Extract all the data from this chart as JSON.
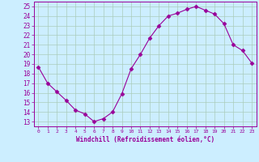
{
  "x": [
    0,
    1,
    2,
    3,
    4,
    5,
    6,
    7,
    8,
    9,
    10,
    11,
    12,
    13,
    14,
    15,
    16,
    17,
    18,
    19,
    20,
    21,
    22,
    23
  ],
  "y": [
    18.7,
    17.0,
    16.1,
    15.2,
    14.2,
    13.8,
    13.0,
    13.3,
    14.0,
    15.9,
    18.5,
    20.0,
    21.7,
    23.0,
    24.0,
    24.3,
    24.7,
    25.0,
    24.6,
    24.2,
    23.2,
    21.0,
    20.4,
    19.1
  ],
  "line_color": "#990099",
  "marker": "D",
  "marker_size": 2.5,
  "bg_color": "#cceeff",
  "grid_color": "#aaccbb",
  "xlabel": "Windchill (Refroidissement éolien,°C)",
  "xlim": [
    -0.5,
    23.5
  ],
  "ylim": [
    12.5,
    25.5
  ],
  "yticks": [
    13,
    14,
    15,
    16,
    17,
    18,
    19,
    20,
    21,
    22,
    23,
    24,
    25
  ],
  "xticks": [
    0,
    1,
    2,
    3,
    4,
    5,
    6,
    7,
    8,
    9,
    10,
    11,
    12,
    13,
    14,
    15,
    16,
    17,
    18,
    19,
    20,
    21,
    22,
    23
  ]
}
